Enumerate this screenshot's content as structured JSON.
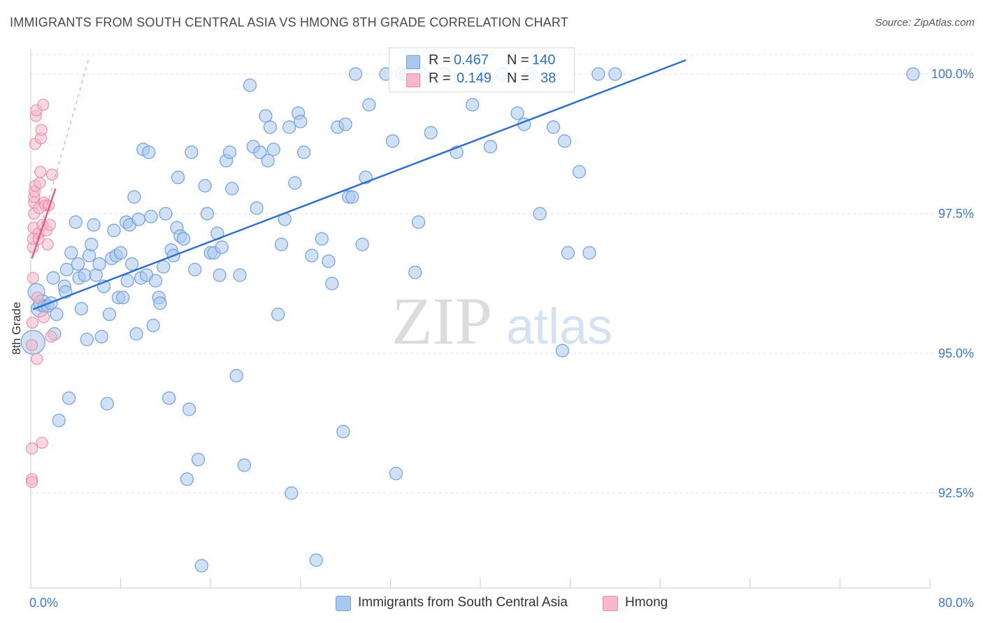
{
  "header": {
    "title": "IMMIGRANTS FROM SOUTH CENTRAL ASIA VS HMONG 8TH GRADE CORRELATION CHART",
    "source": "Source: ZipAtlas.com"
  },
  "watermark": {
    "zip": "ZIP",
    "atlas": "atlas"
  },
  "legend_box": {
    "rows": [
      {
        "r_label": "R =",
        "r_value": "0.467",
        "n_label": "N =",
        "n_value": "140",
        "color": "#a9c8ef"
      },
      {
        "r_label": "R =",
        "r_value": "0.149",
        "n_label": "N =",
        "n_value": "38",
        "color": "#f6b8cb"
      }
    ]
  },
  "colors": {
    "blue_fill": "#a9c8ef",
    "blue_stroke": "#6f9fdc",
    "blue_line": "#2f6fcf",
    "pink_fill": "#f6b8cb",
    "pink_stroke": "#ea8aa8",
    "pink_line": "#e85b88",
    "tick_label": "#3f78c8",
    "grid": "#dddddd"
  },
  "chart_data": {
    "type": "scatter",
    "xlabel": "",
    "ylabel": "8th Grade",
    "xlim": [
      0,
      80
    ],
    "ylim": [
      90.8,
      100.45
    ],
    "x_tick_labels": [
      {
        "x": 0,
        "label": "0.0%"
      },
      {
        "x": 80,
        "label": "80.0%"
      }
    ],
    "y_ticks": [
      {
        "y": 92.5,
        "label": "92.5%"
      },
      {
        "y": 95.0,
        "label": "95.0%"
      },
      {
        "y": 97.5,
        "label": "97.5%"
      },
      {
        "y": 100.0,
        "label": "100.0%"
      }
    ],
    "grid": true,
    "legend_position": "bottom",
    "series": [
      {
        "name": "Immigrants from South Central Asia",
        "trend": {
          "x": [
            0.2,
            58.3
          ],
          "y": [
            95.79,
            100.25
          ]
        },
        "points": [
          [
            0.2,
            95.2
          ],
          [
            0.5,
            96.1
          ],
          [
            0.8,
            95.8
          ],
          [
            1.0,
            95.9
          ],
          [
            1.2,
            95.85
          ],
          [
            1.5,
            95.85
          ],
          [
            1.8,
            95.9
          ],
          [
            2.0,
            96.35
          ],
          [
            2.1,
            95.35
          ],
          [
            2.3,
            95.7
          ],
          [
            2.5,
            93.8
          ],
          [
            3.0,
            96.2
          ],
          [
            3.1,
            96.1
          ],
          [
            3.2,
            96.5
          ],
          [
            3.4,
            94.2
          ],
          [
            3.6,
            96.8
          ],
          [
            4.0,
            97.35
          ],
          [
            4.2,
            96.6
          ],
          [
            4.3,
            96.35
          ],
          [
            4.5,
            95.8
          ],
          [
            4.8,
            96.4
          ],
          [
            5.0,
            95.25
          ],
          [
            5.2,
            96.75
          ],
          [
            5.4,
            96.95
          ],
          [
            5.6,
            97.3
          ],
          [
            5.8,
            96.4
          ],
          [
            6.1,
            96.6
          ],
          [
            6.3,
            95.3
          ],
          [
            6.5,
            96.2
          ],
          [
            6.8,
            94.1
          ],
          [
            7.0,
            95.7
          ],
          [
            7.2,
            96.7
          ],
          [
            7.4,
            97.2
          ],
          [
            7.6,
            96.75
          ],
          [
            7.8,
            96.0
          ],
          [
            8.0,
            96.8
          ],
          [
            8.2,
            96.0
          ],
          [
            8.5,
            97.35
          ],
          [
            8.6,
            96.3
          ],
          [
            8.8,
            97.3
          ],
          [
            9.0,
            96.6
          ],
          [
            9.2,
            97.8
          ],
          [
            9.4,
            95.35
          ],
          [
            9.6,
            97.4
          ],
          [
            9.8,
            96.35
          ],
          [
            10.0,
            98.65
          ],
          [
            10.3,
            96.4
          ],
          [
            10.5,
            98.6
          ],
          [
            10.7,
            97.45
          ],
          [
            10.9,
            95.5
          ],
          [
            11.1,
            96.3
          ],
          [
            11.4,
            96.0
          ],
          [
            11.5,
            95.9
          ],
          [
            11.8,
            96.55
          ],
          [
            12.0,
            97.5
          ],
          [
            12.3,
            94.2
          ],
          [
            12.5,
            96.85
          ],
          [
            12.7,
            96.75
          ],
          [
            13.0,
            97.25
          ],
          [
            13.1,
            98.15
          ],
          [
            13.3,
            97.1
          ],
          [
            13.6,
            97.05
          ],
          [
            13.9,
            92.75
          ],
          [
            14.1,
            94.0
          ],
          [
            14.3,
            98.6
          ],
          [
            14.6,
            96.5
          ],
          [
            14.9,
            93.1
          ],
          [
            15.2,
            91.2
          ],
          [
            15.5,
            98.0
          ],
          [
            15.7,
            97.5
          ],
          [
            16.0,
            96.8
          ],
          [
            16.3,
            96.8
          ],
          [
            16.6,
            97.15
          ],
          [
            16.8,
            96.4
          ],
          [
            17.0,
            96.9
          ],
          [
            17.4,
            98.45
          ],
          [
            17.7,
            98.6
          ],
          [
            17.9,
            97.95
          ],
          [
            18.3,
            94.6
          ],
          [
            18.6,
            96.4
          ],
          [
            19.0,
            93.0
          ],
          [
            19.5,
            99.8
          ],
          [
            19.8,
            98.7
          ],
          [
            20.1,
            97.6
          ],
          [
            20.4,
            98.6
          ],
          [
            20.9,
            99.25
          ],
          [
            21.1,
            98.45
          ],
          [
            21.3,
            99.05
          ],
          [
            21.6,
            98.65
          ],
          [
            22.0,
            95.7
          ],
          [
            22.3,
            96.95
          ],
          [
            22.6,
            97.4
          ],
          [
            23.0,
            99.05
          ],
          [
            23.2,
            92.5
          ],
          [
            23.5,
            98.05
          ],
          [
            23.8,
            99.3
          ],
          [
            24.0,
            99.15
          ],
          [
            24.3,
            98.6
          ],
          [
            25.0,
            96.75
          ],
          [
            25.4,
            91.3
          ],
          [
            25.9,
            97.05
          ],
          [
            26.5,
            96.65
          ],
          [
            26.8,
            96.25
          ],
          [
            27.3,
            99.05
          ],
          [
            27.8,
            93.6
          ],
          [
            28.0,
            99.1
          ],
          [
            28.3,
            97.8
          ],
          [
            28.6,
            97.8
          ],
          [
            28.9,
            100.0
          ],
          [
            29.5,
            96.95
          ],
          [
            29.8,
            98.15
          ],
          [
            30.1,
            99.45
          ],
          [
            31.6,
            100.0
          ],
          [
            32.2,
            98.8
          ],
          [
            32.5,
            92.85
          ],
          [
            33.0,
            100.0
          ],
          [
            33.4,
            100.0
          ],
          [
            34.2,
            96.45
          ],
          [
            34.5,
            97.35
          ],
          [
            34.8,
            100.0
          ],
          [
            35.6,
            98.95
          ],
          [
            36.8,
            100.0
          ],
          [
            37.9,
            98.6
          ],
          [
            39.3,
            99.45
          ],
          [
            40.2,
            100.0
          ],
          [
            40.9,
            98.7
          ],
          [
            41.9,
            100.0
          ],
          [
            43.3,
            99.3
          ],
          [
            43.9,
            99.1
          ],
          [
            44.5,
            100.0
          ],
          [
            45.3,
            97.5
          ],
          [
            46.5,
            99.05
          ],
          [
            47.3,
            95.05
          ],
          [
            47.5,
            98.8
          ],
          [
            47.8,
            96.8
          ],
          [
            48.8,
            98.25
          ],
          [
            49.7,
            96.8
          ],
          [
            50.5,
            100.0
          ],
          [
            52.0,
            100.0
          ],
          [
            78.5,
            100.0
          ]
        ]
      },
      {
        "name": "Hmong",
        "trend": {
          "x": [
            0.1,
            2.2
          ],
          "y": [
            96.7,
            97.95
          ]
        },
        "trend_ext": {
          "x": [
            0.1,
            5.2
          ],
          "y": [
            96.7,
            100.3
          ]
        },
        "points": [
          [
            0.1,
            93.3
          ],
          [
            0.1,
            92.75
          ],
          [
            0.1,
            92.7
          ],
          [
            0.1,
            95.15
          ],
          [
            0.15,
            95.55
          ],
          [
            0.2,
            96.35
          ],
          [
            0.2,
            96.9
          ],
          [
            0.2,
            97.05
          ],
          [
            0.25,
            97.25
          ],
          [
            0.3,
            97.5
          ],
          [
            0.3,
            97.7
          ],
          [
            0.3,
            97.8
          ],
          [
            0.35,
            97.9
          ],
          [
            0.4,
            98.0
          ],
          [
            0.4,
            98.75
          ],
          [
            0.45,
            99.25
          ],
          [
            0.5,
            99.35
          ],
          [
            0.55,
            94.9
          ],
          [
            0.6,
            96.0
          ],
          [
            0.7,
            97.15
          ],
          [
            0.7,
            97.05
          ],
          [
            0.75,
            97.6
          ],
          [
            0.8,
            98.05
          ],
          [
            0.85,
            98.25
          ],
          [
            0.9,
            98.85
          ],
          [
            0.95,
            99.0
          ],
          [
            1.0,
            93.4
          ],
          [
            1.05,
            97.3
          ],
          [
            1.1,
            99.45
          ],
          [
            1.15,
            95.65
          ],
          [
            1.2,
            97.7
          ],
          [
            1.3,
            97.65
          ],
          [
            1.4,
            97.2
          ],
          [
            1.5,
            96.95
          ],
          [
            1.6,
            97.65
          ],
          [
            1.7,
            97.3
          ],
          [
            1.8,
            95.3
          ],
          [
            1.9,
            98.2
          ]
        ]
      }
    ]
  },
  "bottom_legend": [
    {
      "label": "Immigrants from South Central Asia",
      "color": "#a9c8ef"
    },
    {
      "label": "Hmong",
      "color": "#f6b8cb"
    }
  ]
}
